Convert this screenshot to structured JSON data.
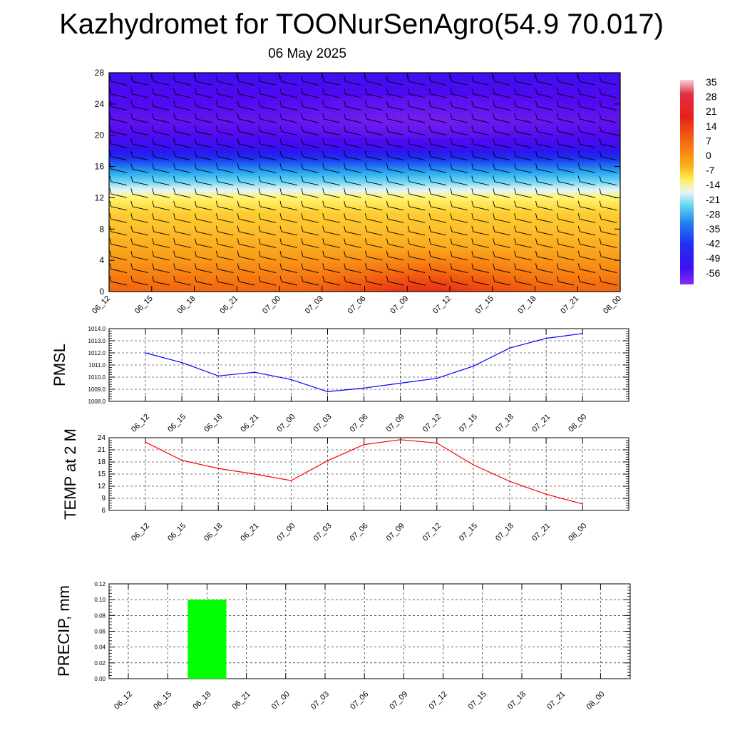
{
  "header": {
    "title": "Kazhydromet for TOONurSenAgro(54.9 70.017)",
    "date": "06 May 2025"
  },
  "time_labels": [
    "06_12",
    "06_15",
    "06_18",
    "06_21",
    "07_00",
    "07_03",
    "07_06",
    "07_09",
    "07_12",
    "07_15",
    "07_18",
    "07_21",
    "08_00"
  ],
  "colors": {
    "pmsl_line": "#0000ff",
    "temp_line": "#ff0000",
    "precip_bar": "#00ff00",
    "grid": "#000000"
  },
  "chart_data": [
    {
      "type": "heatmap",
      "title": "",
      "x_categories": [
        "06_12",
        "06_15",
        "06_18",
        "06_21",
        "07_00",
        "07_03",
        "07_06",
        "07_09",
        "07_12",
        "07_15",
        "07_18",
        "07_21",
        "08_00"
      ],
      "ylim": [
        0,
        28
      ],
      "y_ticks": [
        "0",
        "4",
        "8",
        "12",
        "16",
        "20",
        "24",
        "28"
      ],
      "level_profile": [
        {
          "level": 0,
          "value": 14
        },
        {
          "level": 2,
          "value": 11
        },
        {
          "level": 4,
          "value": 8
        },
        {
          "level": 6,
          "value": 5
        },
        {
          "level": 8,
          "value": 2
        },
        {
          "level": 10,
          "value": 0
        },
        {
          "level": 12,
          "value": -7
        },
        {
          "level": 13,
          "value": -14
        },
        {
          "level": 14,
          "value": -21
        },
        {
          "level": 15,
          "value": -28
        },
        {
          "level": 16,
          "value": -35
        },
        {
          "level": 18,
          "value": -49
        },
        {
          "level": 20,
          "value": -56
        },
        {
          "level": 22,
          "value": -58
        },
        {
          "level": 24,
          "value": -56
        },
        {
          "level": 28,
          "value": -53
        }
      ],
      "colorbar": {
        "labels": [
          "35",
          "28",
          "21",
          "14",
          "7",
          "0",
          "-7",
          "-14",
          "-21",
          "-28",
          "-35",
          "-42",
          "-49",
          "-56"
        ],
        "range": [
          -63,
          42
        ]
      },
      "wind_barbs": true
    },
    {
      "type": "line",
      "ylabel": "PMSL",
      "x": [
        "06_12",
        "06_15",
        "06_18",
        "06_21",
        "07_00",
        "07_03",
        "07_06",
        "07_09",
        "07_12",
        "07_15",
        "07_18",
        "07_21",
        "08_00"
      ],
      "values": [
        1012.0,
        1011.2,
        1010.1,
        1010.4,
        1009.8,
        1008.8,
        1009.1,
        1009.5,
        1009.9,
        1010.9,
        1012.4,
        1013.2,
        1013.6
      ],
      "ylim": [
        1008.0,
        1014.0
      ],
      "y_ticks": [
        "1008.0",
        "1009.0",
        "1010.0",
        "1011.0",
        "1012.0",
        "1013.0",
        "1014.0"
      ],
      "grid": true
    },
    {
      "type": "line",
      "ylabel": "TEMP at 2 M",
      "x": [
        "06_12",
        "06_15",
        "06_18",
        "06_21",
        "07_00",
        "07_03",
        "07_06",
        "07_09",
        "07_12",
        "07_15",
        "07_18",
        "07_21",
        "08_00"
      ],
      "values": [
        22.9,
        18.4,
        16.4,
        15.0,
        13.4,
        18.3,
        22.3,
        23.5,
        22.7,
        17.3,
        13.2,
        10.0,
        7.6
      ],
      "ylim": [
        6,
        24
      ],
      "y_ticks": [
        "6",
        "9",
        "12",
        "15",
        "18",
        "21",
        "24"
      ],
      "grid": true
    },
    {
      "type": "bar",
      "ylabel": "PRECIP, mm",
      "categories": [
        "06_12",
        "06_15",
        "06_18",
        "06_21",
        "07_00",
        "07_03",
        "07_06",
        "07_09",
        "07_12",
        "07_15",
        "07_18",
        "07_21",
        "08_00"
      ],
      "values": [
        0,
        0,
        0.1,
        0,
        0,
        0,
        0,
        0,
        0,
        0,
        0,
        0,
        0
      ],
      "ylim": [
        0,
        0.12
      ],
      "y_ticks": [
        "0.00",
        "0.02",
        "0.04",
        "0.06",
        "0.08",
        "0.10",
        "0.12"
      ],
      "grid": true
    }
  ]
}
